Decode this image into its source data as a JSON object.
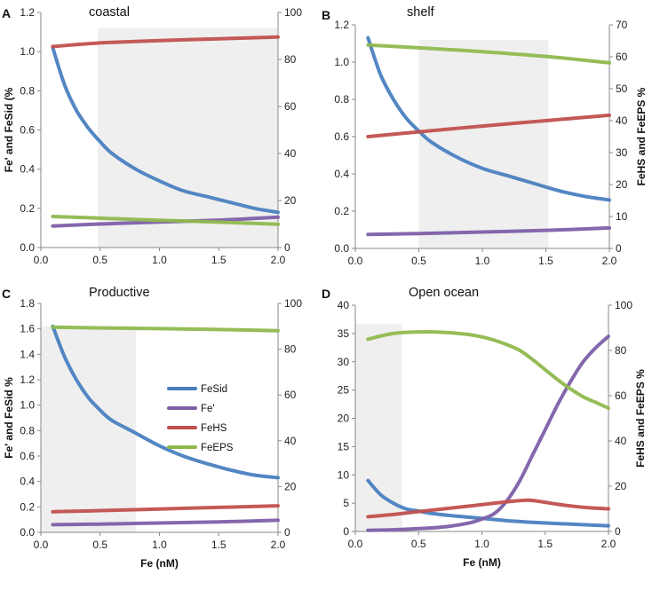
{
  "colors": {
    "FeSid": "#4a7fc0",
    "Fe'": "#7d5fa8",
    "FeHS": "#c0504d",
    "FeEPS": "#8fb84e",
    "shade": "#efefef"
  },
  "chart_data": [
    {
      "type": "line",
      "letter": "A",
      "title": "coastal",
      "xlim": [
        0,
        2
      ],
      "xticks": [
        "0.0",
        "0.5",
        "1.0",
        "1.5",
        "2.0"
      ],
      "show_xticks": true,
      "left": {
        "ylim": [
          0,
          1.2
        ],
        "ticks": [
          "0.0",
          "0.2",
          "0.4",
          "0.6",
          "0.8",
          "1.0",
          "1.2"
        ],
        "label": "Fe' and FeSid (%"
      },
      "right": {
        "ylim": [
          0,
          100
        ],
        "ticks": [
          "0",
          "20",
          "40",
          "60",
          "80",
          "100"
        ],
        "label": ""
      },
      "xlabel": "",
      "shade": [
        0.48,
        2.0,
        1.12
      ],
      "series": [
        {
          "name": "FeSid",
          "axis": "left",
          "x": [
            0.1,
            0.2,
            0.3,
            0.4,
            0.5,
            0.6,
            0.8,
            1.0,
            1.2,
            1.4,
            1.6,
            1.8,
            2.0
          ],
          "y": [
            1.02,
            0.83,
            0.7,
            0.61,
            0.54,
            0.48,
            0.4,
            0.34,
            0.29,
            0.26,
            0.23,
            0.2,
            0.18
          ]
        },
        {
          "name": "Fe'",
          "axis": "left",
          "x": [
            0.1,
            0.5,
            1.0,
            1.5,
            2.0
          ],
          "y": [
            0.11,
            0.12,
            0.13,
            0.14,
            0.155
          ]
        },
        {
          "name": "FeHS",
          "axis": "right",
          "x": [
            0.1,
            0.5,
            1.0,
            1.5,
            2.0
          ],
          "y": [
            85.5,
            87.0,
            88.0,
            88.8,
            89.5
          ]
        },
        {
          "name": "FeEPS",
          "axis": "right",
          "x": [
            0.1,
            0.5,
            1.0,
            1.5,
            2.0
          ],
          "y": [
            13.2,
            12.5,
            11.6,
            10.8,
            9.9
          ]
        }
      ]
    },
    {
      "type": "line",
      "letter": "B",
      "title": "shelf",
      "xlim": [
        0,
        2
      ],
      "xticks": [
        "0.0",
        "0.5",
        "1.0",
        "1.5",
        "2.0"
      ],
      "show_xticks": true,
      "left": {
        "ylim": [
          0,
          1.2
        ],
        "ticks": [
          "0.0",
          "0.2",
          "0.4",
          "0.6",
          "0.8",
          "1.0",
          "1.2"
        ],
        "label": ""
      },
      "right": {
        "ylim": [
          0,
          70
        ],
        "ticks": [
          "0",
          "10",
          "20",
          "30",
          "40",
          "50",
          "60",
          "70"
        ],
        "label": "FeHS and FeEPS %"
      },
      "xlabel": "",
      "shade": [
        0.5,
        1.52,
        1.12
      ],
      "series": [
        {
          "name": "FeSid",
          "axis": "left",
          "x": [
            0.1,
            0.2,
            0.3,
            0.4,
            0.5,
            0.6,
            0.8,
            1.0,
            1.2,
            1.4,
            1.6,
            1.8,
            2.0
          ],
          "y": [
            1.13,
            0.93,
            0.8,
            0.7,
            0.63,
            0.57,
            0.49,
            0.43,
            0.39,
            0.35,
            0.31,
            0.28,
            0.26
          ]
        },
        {
          "name": "Fe'",
          "axis": "left",
          "x": [
            0.1,
            0.5,
            1.0,
            1.5,
            2.0
          ],
          "y": [
            0.075,
            0.08,
            0.088,
            0.097,
            0.11
          ]
        },
        {
          "name": "FeHS",
          "axis": "right",
          "x": [
            0.1,
            0.5,
            1.0,
            1.5,
            2.0
          ],
          "y": [
            35.0,
            36.5,
            38.3,
            40.0,
            41.7
          ]
        },
        {
          "name": "FeEPS",
          "axis": "right",
          "x": [
            0.1,
            0.5,
            1.0,
            1.5,
            2.0
          ],
          "y": [
            63.7,
            62.8,
            61.6,
            60.1,
            58.1
          ]
        }
      ]
    },
    {
      "type": "line",
      "letter": "C",
      "title": "Productive",
      "xlim": [
        0,
        2
      ],
      "xticks": [
        "0.0",
        "0.5",
        "1.0",
        "1.5",
        "2.0"
      ],
      "show_xticks": true,
      "left": {
        "ylim": [
          0,
          1.8
        ],
        "ticks": [
          "0.0",
          "0.2",
          "0.4",
          "0.6",
          "0.8",
          "1.0",
          "1.2",
          "1.4",
          "1.6",
          "1.8"
        ],
        "label": "Fe' and FeSid %"
      },
      "right": {
        "ylim": [
          0,
          100
        ],
        "ticks": [
          "0",
          "20",
          "40",
          "60",
          "80",
          "100"
        ],
        "label": ""
      },
      "xlabel": "Fe (nM)",
      "shade": [
        0.0,
        0.8,
        1.62
      ],
      "legend": {
        "entries": [
          "FeSid",
          "Fe'",
          "FeHS",
          "FeEPS"
        ],
        "placement": "center"
      },
      "series": [
        {
          "name": "FeSid",
          "axis": "left",
          "x": [
            0.1,
            0.2,
            0.3,
            0.4,
            0.5,
            0.6,
            0.8,
            1.0,
            1.2,
            1.4,
            1.6,
            1.8,
            2.0
          ],
          "y": [
            1.62,
            1.38,
            1.2,
            1.06,
            0.96,
            0.88,
            0.78,
            0.68,
            0.6,
            0.54,
            0.49,
            0.45,
            0.43
          ]
        },
        {
          "name": "Fe'",
          "axis": "left",
          "x": [
            0.1,
            0.5,
            1.0,
            1.5,
            2.0
          ],
          "y": [
            0.06,
            0.065,
            0.073,
            0.082,
            0.095
          ]
        },
        {
          "name": "FeHS",
          "axis": "right",
          "x": [
            0.1,
            0.5,
            1.0,
            1.5,
            2.0
          ],
          "y": [
            9.0,
            9.5,
            10.2,
            10.9,
            11.6
          ]
        },
        {
          "name": "FeEPS",
          "axis": "right",
          "x": [
            0.1,
            0.5,
            1.0,
            1.5,
            2.0
          ],
          "y": [
            89.6,
            89.3,
            89.0,
            88.6,
            88.1
          ]
        }
      ]
    },
    {
      "type": "line",
      "letter": "D",
      "title": "Open ocean",
      "xlim": [
        0,
        2
      ],
      "xticks": [
        "0.0",
        "0.5",
        "1.0",
        "1.5",
        "2.0"
      ],
      "show_xticks": true,
      "left": {
        "ylim": [
          0,
          40
        ],
        "ticks": [
          "0",
          "5",
          "10",
          "15",
          "20",
          "25",
          "30",
          "35",
          "40"
        ],
        "label": ""
      },
      "right": {
        "ylim": [
          0,
          100
        ],
        "ticks": [
          "0",
          "20",
          "40",
          "60",
          "80",
          "100"
        ],
        "label": "FeHS and FeEPS %"
      },
      "xlabel": "Fe (nM)",
      "shade": [
        0.0,
        0.37,
        36.7
      ],
      "series": [
        {
          "name": "FeSid",
          "axis": "left",
          "x": [
            0.1,
            0.2,
            0.3,
            0.4,
            0.5,
            0.6,
            0.8,
            1.0,
            1.2,
            1.4,
            1.6,
            1.8,
            2.0
          ],
          "y": [
            9.0,
            6.5,
            5.0,
            4.0,
            3.6,
            3.2,
            2.7,
            2.3,
            1.9,
            1.6,
            1.4,
            1.2,
            1.0
          ]
        },
        {
          "name": "Fe'",
          "axis": "left",
          "x": [
            0.1,
            0.3,
            0.5,
            0.7,
            0.9,
            1.0,
            1.1,
            1.2,
            1.3,
            1.4,
            1.5,
            1.6,
            1.7,
            1.8,
            1.9,
            2.0
          ],
          "y": [
            0.2,
            0.3,
            0.5,
            0.8,
            1.5,
            2.2,
            3.2,
            5.5,
            9.0,
            13.5,
            18.0,
            22.5,
            26.5,
            30.0,
            32.5,
            34.5
          ]
        },
        {
          "name": "FeHS",
          "axis": "right",
          "x": [
            0.1,
            0.3,
            0.5,
            0.7,
            0.9,
            1.1,
            1.3,
            1.4,
            1.6,
            1.8,
            2.0
          ],
          "y": [
            6.5,
            7.5,
            8.8,
            10.0,
            11.2,
            12.5,
            13.6,
            13.7,
            12.0,
            10.7,
            10.0
          ]
        },
        {
          "name": "FeEPS",
          "axis": "right",
          "x": [
            0.1,
            0.3,
            0.5,
            0.7,
            0.9,
            1.0,
            1.1,
            1.2,
            1.3,
            1.4,
            1.5,
            1.6,
            1.7,
            1.8,
            1.9,
            2.0
          ],
          "y": [
            85.0,
            87.5,
            88.2,
            88.0,
            87.0,
            86.0,
            84.5,
            82.5,
            80.0,
            76.0,
            71.5,
            67.0,
            63.0,
            59.5,
            57.0,
            54.5
          ]
        }
      ]
    }
  ]
}
